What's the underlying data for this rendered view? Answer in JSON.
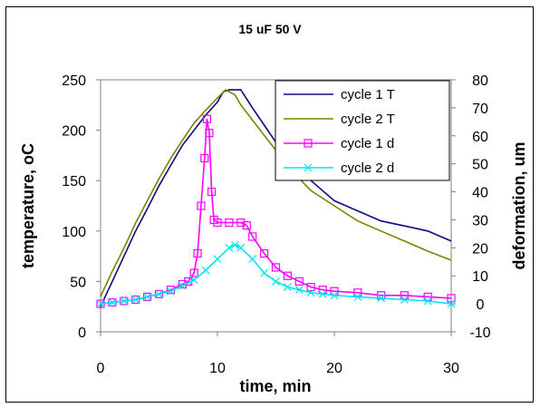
{
  "chart_data": {
    "type": "line",
    "title": "15 uF 50 V",
    "xlabel": "time, min",
    "ylabel_left": "temperature, oC",
    "ylabel_right": "deformation, um",
    "xlim": [
      0,
      30
    ],
    "ylim_left": [
      0,
      250
    ],
    "ylim_right": [
      -10,
      80
    ],
    "x_ticks": [
      "0",
      "10",
      "20",
      "30"
    ],
    "y_left_ticks": [
      "0",
      "50",
      "100",
      "150",
      "200",
      "250"
    ],
    "y_right_ticks": [
      "-10",
      "0",
      "10",
      "20",
      "30",
      "40",
      "50",
      "60",
      "70",
      "80"
    ],
    "grid": false,
    "legend_position": "top-right",
    "series": [
      {
        "name": "cycle 1 T",
        "axis": "left",
        "color": "#0b0b80",
        "marker": "none",
        "points": [
          [
            0,
            25
          ],
          [
            1,
            50
          ],
          [
            2,
            75
          ],
          [
            3,
            100
          ],
          [
            4,
            122
          ],
          [
            5,
            145
          ],
          [
            6,
            165
          ],
          [
            7,
            185
          ],
          [
            8,
            200
          ],
          [
            9,
            215
          ],
          [
            10,
            228
          ],
          [
            10.5,
            238
          ],
          [
            11,
            240
          ],
          [
            12,
            240
          ],
          [
            13,
            222
          ],
          [
            14,
            205
          ],
          [
            15,
            188
          ],
          [
            16,
            172
          ],
          [
            17,
            160
          ],
          [
            18,
            150
          ],
          [
            19,
            140
          ],
          [
            20,
            130
          ],
          [
            22,
            120
          ],
          [
            24,
            110
          ],
          [
            26,
            105
          ],
          [
            28,
            100
          ],
          [
            30,
            90
          ]
        ]
      },
      {
        "name": "cycle 2 T",
        "axis": "left",
        "color": "#808000",
        "marker": "none",
        "points": [
          [
            0,
            35
          ],
          [
            1,
            60
          ],
          [
            2,
            83
          ],
          [
            3,
            108
          ],
          [
            4,
            130
          ],
          [
            5,
            152
          ],
          [
            6,
            172
          ],
          [
            7,
            190
          ],
          [
            8,
            207
          ],
          [
            9,
            220
          ],
          [
            10,
            232
          ],
          [
            10.7,
            240
          ],
          [
            11.5,
            235
          ],
          [
            12,
            225
          ],
          [
            13,
            210
          ],
          [
            14,
            195
          ],
          [
            15,
            180
          ],
          [
            16,
            165
          ],
          [
            17,
            152
          ],
          [
            18,
            140
          ],
          [
            20,
            125
          ],
          [
            22,
            110
          ],
          [
            24,
            100
          ],
          [
            26,
            90
          ],
          [
            28,
            80
          ],
          [
            30,
            71
          ]
        ]
      },
      {
        "name": "cycle 1 d",
        "axis": "right",
        "color": "#ff00ff",
        "marker": "square",
        "points": [
          [
            0,
            0
          ],
          [
            1,
            0.5
          ],
          [
            2,
            1
          ],
          [
            3,
            1.5
          ],
          [
            4,
            2.5
          ],
          [
            5,
            3.5
          ],
          [
            6,
            5
          ],
          [
            7,
            7
          ],
          [
            7.5,
            8
          ],
          [
            8,
            11
          ],
          [
            8.3,
            18
          ],
          [
            8.6,
            35
          ],
          [
            8.9,
            52
          ],
          [
            9.1,
            66
          ],
          [
            9.3,
            61
          ],
          [
            9.5,
            40
          ],
          [
            9.7,
            30
          ],
          [
            10,
            29
          ],
          [
            11,
            29
          ],
          [
            12,
            29
          ],
          [
            12.5,
            28
          ],
          [
            13,
            24
          ],
          [
            14,
            18
          ],
          [
            15,
            13
          ],
          [
            16,
            10
          ],
          [
            17,
            8
          ],
          [
            18,
            6
          ],
          [
            19,
            5
          ],
          [
            20,
            4.5
          ],
          [
            22,
            4
          ],
          [
            24,
            3
          ],
          [
            26,
            3
          ],
          [
            28,
            2.5
          ],
          [
            30,
            2
          ]
        ]
      },
      {
        "name": "cycle 2 d",
        "axis": "right",
        "color": "#00e5ee",
        "marker": "x",
        "points": [
          [
            0,
            0
          ],
          [
            1,
            0.5
          ],
          [
            2,
            1
          ],
          [
            3,
            1.5
          ],
          [
            4,
            2.5
          ],
          [
            5,
            3.5
          ],
          [
            6,
            4.5
          ],
          [
            7,
            6.5
          ],
          [
            8,
            8.5
          ],
          [
            9,
            12
          ],
          [
            10,
            16
          ],
          [
            11,
            20
          ],
          [
            11.5,
            21
          ],
          [
            12,
            20
          ],
          [
            13,
            16
          ],
          [
            14,
            11
          ],
          [
            15,
            8
          ],
          [
            16,
            6
          ],
          [
            17,
            5
          ],
          [
            18,
            4
          ],
          [
            19,
            3.5
          ],
          [
            20,
            3
          ],
          [
            22,
            2.5
          ],
          [
            24,
            2
          ],
          [
            26,
            1.5
          ],
          [
            28,
            1
          ],
          [
            30,
            0
          ]
        ]
      }
    ]
  }
}
